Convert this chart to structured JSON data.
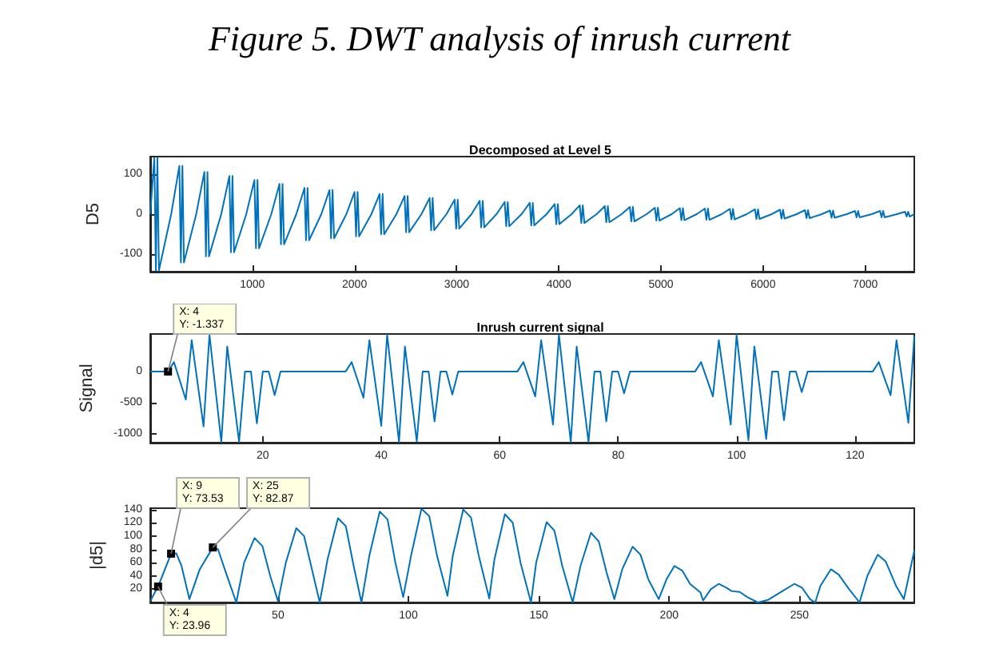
{
  "chart_data": [
    {
      "type": "line",
      "title": "Figure 5. DWT analysis of inrush current",
      "subtitle": "Decomposed at Level 5",
      "ylabel": "D5",
      "xlim": [
        0,
        7480
      ],
      "ylim": [
        -143,
        143
      ],
      "xticks": [
        1000,
        2000,
        3000,
        4000,
        5000,
        6000,
        7000
      ],
      "yticks": [
        -100,
        0,
        100
      ],
      "grid": false,
      "marker": "none",
      "series": [
        {
          "color": "#0072bd",
          "x": [
            0,
            40,
            55,
            70,
            85,
            205,
            285,
            300,
            315,
            330,
            450,
            530,
            545,
            560,
            575,
            695,
            775,
            790,
            805,
            820,
            940,
            1020,
            1035,
            1050,
            1065,
            1185,
            1265,
            1280,
            1295,
            1310,
            1430,
            1510,
            1525,
            1540,
            1555,
            1675,
            1755,
            1770,
            1785,
            1800,
            1920,
            2000,
            2015,
            2030,
            2045,
            2165,
            2245,
            2260,
            2275,
            2290,
            2410,
            2490,
            2505,
            2520,
            2535,
            2655,
            2735,
            2750,
            2765,
            2780,
            2900,
            2980,
            2995,
            3010,
            3025,
            3145,
            3225,
            3240,
            3255,
            3270,
            3390,
            3470,
            3485,
            3500,
            3515,
            3635,
            3715,
            3730,
            3745,
            3760,
            3880,
            3960,
            3975,
            3990,
            4005,
            4125,
            4205,
            4220,
            4235,
            4250,
            4370,
            4450,
            4465,
            4480,
            4495,
            4615,
            4695,
            4710,
            4725,
            4740,
            4860,
            4940,
            4955,
            4970,
            4985,
            5105,
            5185,
            5200,
            5215,
            5230,
            5350,
            5430,
            5445,
            5460,
            5475,
            5595,
            5675,
            5690,
            5705,
            5720,
            5840,
            5920,
            5935,
            5950,
            5965,
            6085,
            6165,
            6180,
            6195,
            6210,
            6330,
            6410,
            6425,
            6440,
            6455,
            6575,
            6655,
            6670,
            6685,
            6700,
            6820,
            6900,
            6915,
            6930,
            6945,
            7065,
            7145,
            7160,
            7175,
            7190,
            7310,
            7390,
            7405,
            7420,
            7435,
            7480
          ],
          "values": [
            0,
            140,
            -140,
            140,
            -140,
            0,
            120,
            -120,
            120,
            -120,
            0,
            105,
            -105,
            105,
            -105,
            0,
            95,
            -95,
            95,
            -95,
            0,
            85,
            -85,
            85,
            -85,
            0,
            75,
            -75,
            75,
            -75,
            0,
            65,
            -65,
            65,
            -65,
            0,
            60,
            -60,
            60,
            -60,
            0,
            55,
            -55,
            55,
            -55,
            0,
            50,
            -50,
            50,
            -50,
            0,
            45,
            -45,
            45,
            -45,
            0,
            40,
            -40,
            40,
            -40,
            0,
            36,
            -36,
            36,
            -36,
            0,
            33,
            -33,
            33,
            -33,
            0,
            30,
            -30,
            30,
            -30,
            0,
            28,
            -28,
            28,
            -28,
            0,
            25,
            -25,
            25,
            -25,
            0,
            22,
            -22,
            22,
            -22,
            0,
            20,
            -20,
            20,
            -20,
            0,
            18,
            -18,
            18,
            -18,
            0,
            16,
            -16,
            16,
            -16,
            0,
            15,
            -15,
            15,
            -15,
            0,
            14,
            -14,
            14,
            -14,
            0,
            13,
            -13,
            13,
            -13,
            0,
            12,
            -12,
            12,
            -12,
            0,
            11,
            -11,
            11,
            -11,
            0,
            10,
            -10,
            10,
            -10,
            0,
            9,
            -9,
            9,
            -9,
            0,
            8,
            -8,
            8,
            -8,
            0,
            8,
            -8,
            8,
            -8,
            0,
            6,
            -6,
            6,
            -6,
            0
          ]
        }
      ]
    },
    {
      "type": "line",
      "title": "Inrush current signal",
      "ylabel": "Signal",
      "xlim": [
        1,
        130
      ],
      "ylim": [
        -1140,
        600
      ],
      "xticks": [
        20,
        40,
        60,
        80,
        100,
        120
      ],
      "yticks": [
        -1000,
        -500,
        0
      ],
      "grid": false,
      "marker": "none",
      "annotations": [
        {
          "text": "X: 4\nY: -1.337",
          "x": 4,
          "y": -1.337
        }
      ],
      "series": [
        {
          "color": "#0072bd",
          "x": [
            1,
            4,
            5,
            7,
            8,
            10,
            11,
            13,
            14,
            16,
            17,
            18,
            19,
            20,
            21,
            22,
            23,
            34,
            35,
            37,
            38,
            40,
            41,
            43,
            44,
            46,
            47,
            48,
            49,
            50,
            51,
            52,
            53,
            63,
            64,
            66,
            67,
            69,
            70,
            72,
            73,
            75,
            76,
            77,
            78,
            79,
            80,
            81,
            82,
            93,
            94,
            96,
            97,
            99,
            100,
            102,
            103,
            105,
            106,
            107,
            108,
            109,
            110,
            111,
            112,
            123,
            124,
            126,
            127,
            129,
            130
          ],
          "values": [
            0,
            -1.337,
            150,
            -450,
            500,
            -880,
            590,
            -1130,
            400,
            -1130,
            0,
            0,
            -830,
            0,
            0,
            -380,
            0,
            0,
            150,
            -420,
            500,
            -870,
            590,
            -1130,
            400,
            -1120,
            0,
            0,
            -800,
            0,
            0,
            -370,
            0,
            0,
            150,
            -400,
            500,
            -850,
            590,
            -1130,
            400,
            -1130,
            0,
            0,
            -800,
            0,
            0,
            -350,
            0,
            0,
            150,
            -400,
            500,
            -850,
            590,
            -1100,
            400,
            -1080,
            0,
            0,
            -780,
            0,
            0,
            -330,
            0,
            0,
            150,
            -380,
            500,
            -820,
            560
          ]
        }
      ]
    },
    {
      "type": "line",
      "ylabel": "|d5|",
      "xlim": [
        1,
        294
      ],
      "ylim": [
        0,
        142
      ],
      "xticks": [
        50,
        100,
        150,
        200,
        250
      ],
      "yticks": [
        20,
        40,
        60,
        80,
        100,
        120,
        140
      ],
      "grid": false,
      "marker": "none",
      "annotations": [
        {
          "text": "X: 4\nY: 23.96",
          "x": 4,
          "y": 23.96
        },
        {
          "text": "X: 9\nY: 73.53",
          "x": 9,
          "y": 73.53
        },
        {
          "text": "X: 25\nY: 82.87",
          "x": 25,
          "y": 82.87
        }
      ],
      "series": [
        {
          "color": "#0072bd",
          "x": [
            1,
            4,
            9,
            11,
            13,
            16,
            20,
            25,
            27,
            30,
            34,
            37,
            41,
            44,
            47,
            50,
            53,
            57,
            60,
            63,
            66,
            69,
            73,
            76,
            79,
            82,
            85,
            89,
            92,
            95,
            98,
            101,
            105,
            108,
            111,
            115,
            117,
            121,
            124,
            127,
            131,
            133,
            137,
            140,
            143,
            147,
            149,
            153,
            156,
            159,
            163,
            166,
            170,
            173,
            176,
            179,
            182,
            186,
            189,
            192,
            196,
            199,
            202,
            205,
            208,
            212,
            213,
            216,
            219,
            222,
            224,
            227,
            230,
            234,
            238,
            243,
            248,
            251,
            254,
            256,
            258,
            262,
            265,
            269,
            273,
            276,
            280,
            283,
            287,
            290,
            294
          ],
          "values": [
            2,
            23.96,
            73.53,
            74,
            55,
            5,
            50,
            82.87,
            80,
            45,
            0,
            60,
            97,
            85,
            40,
            2,
            60,
            112,
            100,
            50,
            0,
            65,
            127,
            115,
            55,
            0,
            70,
            137,
            125,
            60,
            8,
            70,
            141,
            130,
            70,
            10,
            70,
            140,
            128,
            70,
            6,
            65,
            133,
            120,
            60,
            0,
            60,
            121,
            108,
            55,
            0,
            55,
            105,
            92,
            45,
            5,
            50,
            84,
            72,
            35,
            5,
            35,
            55,
            48,
            28,
            15,
            3,
            20,
            28,
            22,
            17,
            16,
            8,
            0,
            4,
            16,
            28,
            22,
            5,
            0,
            25,
            50,
            42,
            20,
            0,
            40,
            72,
            62,
            25,
            5,
            78
          ]
        }
      ]
    }
  ]
}
